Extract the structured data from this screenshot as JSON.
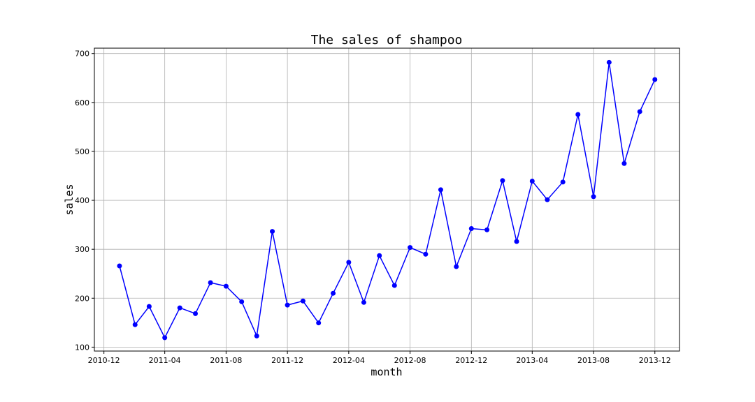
{
  "chart_data": {
    "type": "line",
    "title": "The sales of shampoo",
    "xlabel": "month",
    "ylabel": "sales",
    "x_ticks": [
      "2010-12",
      "2011-04",
      "2011-08",
      "2011-12",
      "2012-04",
      "2012-08",
      "2012-12",
      "2013-04",
      "2013-08",
      "2013-12"
    ],
    "y_ticks": [
      100,
      200,
      300,
      400,
      500,
      600,
      700
    ],
    "xlim": [
      "2010-11-12",
      "2014-01-19"
    ],
    "ylim": [
      92,
      711
    ],
    "grid": true,
    "line_color": "#0000ff",
    "marker": "circle",
    "series": [
      {
        "x": [
          "2011-01-01",
          "2011-02-01",
          "2011-03-01",
          "2011-04-01",
          "2011-05-01",
          "2011-06-01",
          "2011-07-01",
          "2011-08-01",
          "2011-09-01",
          "2011-10-01",
          "2011-11-01",
          "2011-12-01",
          "2012-01-01",
          "2012-02-01",
          "2012-03-01",
          "2012-04-01",
          "2012-05-01",
          "2012-06-01",
          "2012-07-01",
          "2012-08-01",
          "2012-09-01",
          "2012-10-01",
          "2012-11-01",
          "2012-12-01",
          "2013-01-01",
          "2013-02-01",
          "2013-03-01",
          "2013-04-01",
          "2013-05-01",
          "2013-06-01",
          "2013-07-01",
          "2013-08-01",
          "2013-09-01",
          "2013-10-01",
          "2013-11-01",
          "2013-12-01"
        ],
        "values": [
          266.0,
          145.9,
          183.1,
          119.3,
          180.3,
          168.5,
          231.8,
          224.5,
          192.8,
          122.9,
          336.5,
          185.9,
          194.3,
          149.5,
          210.1,
          273.3,
          191.4,
          287.0,
          226.0,
          303.6,
          289.9,
          421.6,
          264.5,
          342.3,
          339.7,
          440.4,
          315.9,
          439.3,
          401.3,
          437.4,
          575.5,
          407.6,
          682.0,
          475.3,
          581.3,
          646.9
        ]
      }
    ]
  }
}
